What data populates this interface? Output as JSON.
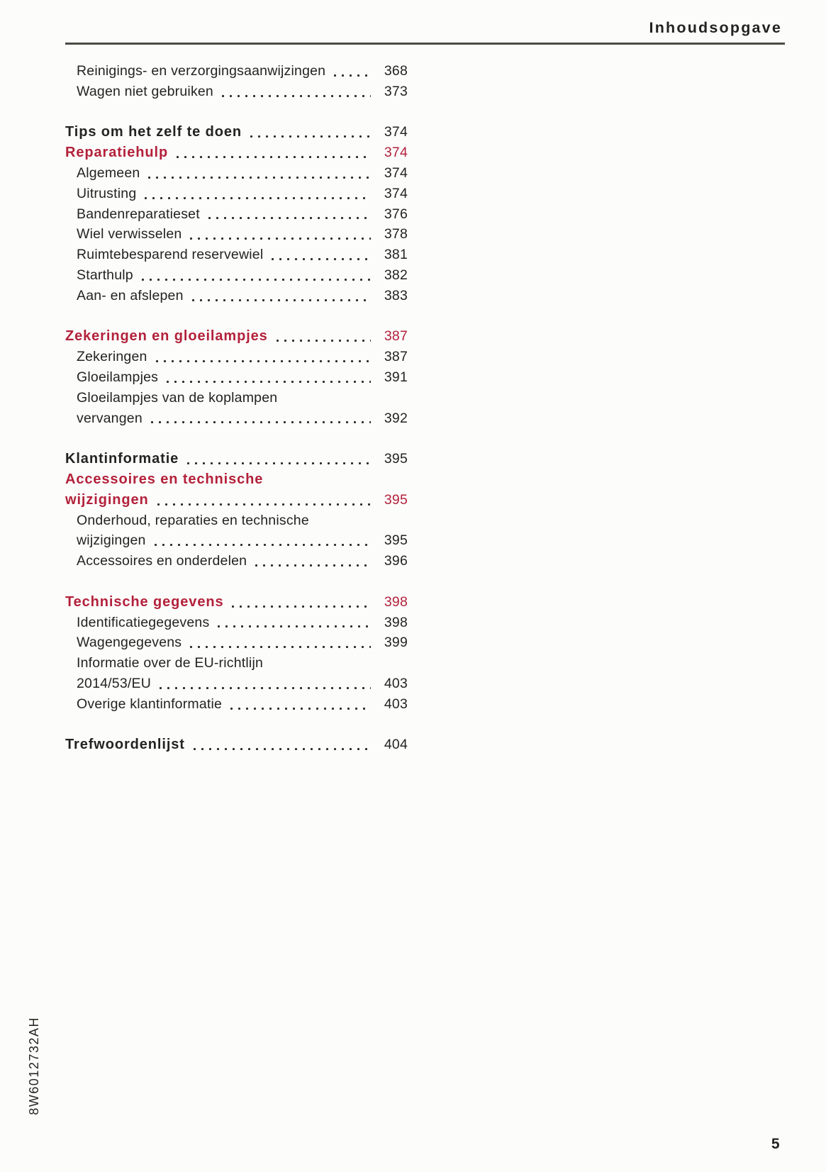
{
  "header": {
    "title": "Inhoudsopgave"
  },
  "toc": {
    "groups": [
      {
        "entries": [
          {
            "lines": [
              "Reinigings- en verzorgingsaanwijzingen"
            ],
            "page": "368",
            "style": "sub"
          },
          {
            "lines": [
              "Wagen niet gebruiken"
            ],
            "page": "373",
            "style": "sub"
          }
        ]
      },
      {
        "entries": [
          {
            "lines": [
              "Tips om het zelf te doen"
            ],
            "page": "374",
            "style": "chapter"
          },
          {
            "lines": [
              "Reparatiehulp"
            ],
            "page": "374",
            "style": "section"
          },
          {
            "lines": [
              "Algemeen"
            ],
            "page": "374",
            "style": "sub"
          },
          {
            "lines": [
              "Uitrusting"
            ],
            "page": "374",
            "style": "sub"
          },
          {
            "lines": [
              "Bandenreparatieset"
            ],
            "page": "376",
            "style": "sub"
          },
          {
            "lines": [
              "Wiel verwisselen"
            ],
            "page": "378",
            "style": "sub"
          },
          {
            "lines": [
              "Ruimtebesparend reservewiel"
            ],
            "page": "381",
            "style": "sub"
          },
          {
            "lines": [
              "Starthulp"
            ],
            "page": "382",
            "style": "sub"
          },
          {
            "lines": [
              "Aan- en afslepen"
            ],
            "page": "383",
            "style": "sub"
          }
        ]
      },
      {
        "entries": [
          {
            "lines": [
              "Zekeringen en gloeilampjes"
            ],
            "page": "387",
            "style": "section"
          },
          {
            "lines": [
              "Zekeringen"
            ],
            "page": "387",
            "style": "sub"
          },
          {
            "lines": [
              "Gloeilampjes"
            ],
            "page": "391",
            "style": "sub"
          },
          {
            "lines": [
              "Gloeilampjes van de koplampen",
              "vervangen"
            ],
            "page": "392",
            "style": "sub"
          }
        ]
      },
      {
        "entries": [
          {
            "lines": [
              "Klantinformatie"
            ],
            "page": "395",
            "style": "chapter"
          },
          {
            "lines": [
              "Accessoires en technische",
              "wijzigingen"
            ],
            "page": "395",
            "style": "section"
          },
          {
            "lines": [
              "Onderhoud, reparaties en technische",
              "wijzigingen"
            ],
            "page": "395",
            "style": "sub"
          },
          {
            "lines": [
              "Accessoires en onderdelen"
            ],
            "page": "396",
            "style": "sub"
          }
        ]
      },
      {
        "entries": [
          {
            "lines": [
              "Technische gegevens"
            ],
            "page": "398",
            "style": "section"
          },
          {
            "lines": [
              "Identificatiegegevens"
            ],
            "page": "398",
            "style": "sub"
          },
          {
            "lines": [
              "Wagengegevens"
            ],
            "page": "399",
            "style": "sub"
          },
          {
            "lines": [
              "Informatie over de EU-richtlijn",
              "2014/53/EU"
            ],
            "page": "403",
            "style": "sub"
          },
          {
            "lines": [
              "Overige klantinformatie"
            ],
            "page": "403",
            "style": "sub"
          }
        ]
      },
      {
        "entries": [
          {
            "lines": [
              "Trefwoordenlijst"
            ],
            "page": "404",
            "style": "chapter"
          }
        ]
      }
    ]
  },
  "footer": {
    "document_code": "8W6012732AH",
    "page_number": "5"
  },
  "colors": {
    "accent_red": "#b3213a",
    "text": "#232320",
    "rule_line": "#4a4a44",
    "dot_leader": "#2a2a26",
    "page_background": "#fcfcfb"
  }
}
